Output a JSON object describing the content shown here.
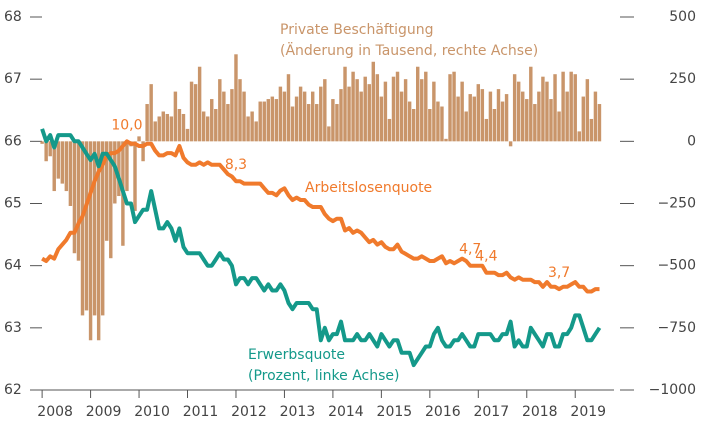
{
  "chart_data": {
    "type": "combo",
    "x": [
      "2008-01",
      "2008-02",
      "2008-03",
      "2008-04",
      "2008-05",
      "2008-06",
      "2008-07",
      "2008-08",
      "2008-09",
      "2008-10",
      "2008-11",
      "2008-12",
      "2009-01",
      "2009-02",
      "2009-03",
      "2009-04",
      "2009-05",
      "2009-06",
      "2009-07",
      "2009-08",
      "2009-09",
      "2009-10",
      "2009-11",
      "2009-12",
      "2010-01",
      "2010-02",
      "2010-03",
      "2010-04",
      "2010-05",
      "2010-06",
      "2010-07",
      "2010-08",
      "2010-09",
      "2010-10",
      "2010-11",
      "2010-12",
      "2011-01",
      "2011-02",
      "2011-03",
      "2011-04",
      "2011-05",
      "2011-06",
      "2011-07",
      "2011-08",
      "2011-09",
      "2011-10",
      "2011-11",
      "2011-12",
      "2012-01",
      "2012-02",
      "2012-03",
      "2012-04",
      "2012-05",
      "2012-06",
      "2012-07",
      "2012-08",
      "2012-09",
      "2012-10",
      "2012-11",
      "2012-12",
      "2013-01",
      "2013-02",
      "2013-03",
      "2013-04",
      "2013-05",
      "2013-06",
      "2013-07",
      "2013-08",
      "2013-09",
      "2013-10",
      "2013-11",
      "2013-12",
      "2014-01",
      "2014-02",
      "2014-03",
      "2014-04",
      "2014-05",
      "2014-06",
      "2014-07",
      "2014-08",
      "2014-09",
      "2014-10",
      "2014-11",
      "2014-12",
      "2015-01",
      "2015-02",
      "2015-03",
      "2015-04",
      "2015-05",
      "2015-06",
      "2015-07",
      "2015-08",
      "2015-09",
      "2015-10",
      "2015-11",
      "2015-12",
      "2016-01",
      "2016-02",
      "2016-03",
      "2016-04",
      "2016-05",
      "2016-06",
      "2016-07",
      "2016-08",
      "2016-09",
      "2016-10",
      "2016-11",
      "2016-12",
      "2017-01",
      "2017-02",
      "2017-03",
      "2017-04",
      "2017-05",
      "2017-06",
      "2017-07",
      "2017-08",
      "2017-09",
      "2017-10",
      "2017-11",
      "2017-12",
      "2018-01",
      "2018-02",
      "2018-03",
      "2018-04",
      "2018-05",
      "2018-06",
      "2018-07",
      "2018-08",
      "2018-09",
      "2018-10",
      "2018-11",
      "2018-12",
      "2019-01",
      "2019-02",
      "2019-03",
      "2019-04",
      "2019-05",
      "2019-06",
      "2019-07"
    ],
    "series": [
      {
        "name": "Private Beschäftigung",
        "note": "(Änderung in Tausend, rechte Achse)",
        "kind": "bar",
        "axis": "y2",
        "color": "#c9956a",
        "values": [
          -10,
          -80,
          -60,
          -200,
          -150,
          -170,
          -200,
          -260,
          -450,
          -480,
          -700,
          -680,
          -800,
          -700,
          -800,
          -700,
          -400,
          -470,
          -250,
          -220,
          -420,
          -200,
          -20,
          -280,
          20,
          -80,
          150,
          230,
          80,
          100,
          120,
          110,
          100,
          200,
          130,
          110,
          50,
          240,
          230,
          300,
          120,
          100,
          170,
          130,
          250,
          200,
          150,
          210,
          350,
          250,
          200,
          100,
          120,
          80,
          160,
          160,
          170,
          180,
          170,
          220,
          200,
          270,
          140,
          180,
          220,
          200,
          150,
          200,
          150,
          220,
          250,
          60,
          170,
          150,
          210,
          300,
          220,
          280,
          250,
          200,
          260,
          230,
          320,
          270,
          180,
          240,
          90,
          260,
          280,
          200,
          250,
          160,
          130,
          300,
          250,
          280,
          130,
          240,
          160,
          140,
          10,
          270,
          280,
          180,
          240,
          120,
          190,
          180,
          230,
          210,
          90,
          200,
          130,
          210,
          160,
          190,
          -20,
          270,
          240,
          200,
          170,
          300,
          150,
          200,
          260,
          240,
          170,
          270,
          120,
          280,
          200,
          280,
          270,
          40,
          180,
          250,
          90,
          200,
          150
        ]
      },
      {
        "name": "Arbeitslosenquote",
        "kind": "line",
        "axis": "y3",
        "color": "#f07a2c",
        "values": [
          5.0,
          4.9,
          5.1,
          5.0,
          5.4,
          5.6,
          5.8,
          6.1,
          6.1,
          6.5,
          6.8,
          7.3,
          7.8,
          8.3,
          8.7,
          9.0,
          9.4,
          9.5,
          9.5,
          9.6,
          9.8,
          10.0,
          9.9,
          9.9,
          9.8,
          9.8,
          9.9,
          9.9,
          9.6,
          9.4,
          9.4,
          9.5,
          9.5,
          9.4,
          9.8,
          9.3,
          9.1,
          9.0,
          9.0,
          9.1,
          9.0,
          9.1,
          9.0,
          9.0,
          9.0,
          8.8,
          8.6,
          8.5,
          8.3,
          8.3,
          8.2,
          8.2,
          8.2,
          8.2,
          8.2,
          8.0,
          7.8,
          7.8,
          7.7,
          7.9,
          8.0,
          7.7,
          7.5,
          7.6,
          7.5,
          7.5,
          7.3,
          7.2,
          7.2,
          7.2,
          6.9,
          6.7,
          6.6,
          6.7,
          6.7,
          6.2,
          6.3,
          6.1,
          6.2,
          6.1,
          5.9,
          5.7,
          5.8,
          5.6,
          5.7,
          5.5,
          5.4,
          5.4,
          5.6,
          5.3,
          5.2,
          5.1,
          5.0,
          5.0,
          5.1,
          5.0,
          4.9,
          4.9,
          5.0,
          5.1,
          4.8,
          4.9,
          4.8,
          4.9,
          5.0,
          4.9,
          4.7,
          4.7,
          4.7,
          4.7,
          4.4,
          4.4,
          4.4,
          4.3,
          4.3,
          4.4,
          4.2,
          4.1,
          4.2,
          4.1,
          4.1,
          4.1,
          4.0,
          4.0,
          3.8,
          4.0,
          3.8,
          3.8,
          3.7,
          3.8,
          3.8,
          3.9,
          4.0,
          3.8,
          3.8,
          3.6,
          3.6,
          3.7,
          3.7
        ],
        "annotations": [
          {
            "x": "2009-10",
            "label": "10,0"
          },
          {
            "x": "2012-01",
            "label": "8,3"
          },
          {
            "x": "2016-11",
            "label": "4,7"
          },
          {
            "x": "2017-03",
            "label": "4,4"
          },
          {
            "x": "2018-09",
            "label": "3,7"
          }
        ]
      },
      {
        "name": "Erwerbsquote",
        "note": "(Prozent, linke Achse)",
        "kind": "line",
        "axis": "y",
        "color": "#14998a",
        "values": [
          66.2,
          66.0,
          66.1,
          65.9,
          66.1,
          66.1,
          66.1,
          66.1,
          66.0,
          66.0,
          65.9,
          65.8,
          65.7,
          65.8,
          65.6,
          65.8,
          65.8,
          65.7,
          65.6,
          65.4,
          65.2,
          65.0,
          65.0,
          64.7,
          64.8,
          64.9,
          64.9,
          65.2,
          64.9,
          64.6,
          64.6,
          64.7,
          64.6,
          64.4,
          64.6,
          64.3,
          64.2,
          64.2,
          64.2,
          64.2,
          64.1,
          64.0,
          64.0,
          64.1,
          64.2,
          64.1,
          64.1,
          64.0,
          63.7,
          63.8,
          63.8,
          63.7,
          63.8,
          63.8,
          63.7,
          63.6,
          63.7,
          63.6,
          63.6,
          63.7,
          63.6,
          63.4,
          63.3,
          63.4,
          63.4,
          63.4,
          63.4,
          63.3,
          63.3,
          62.8,
          63.0,
          62.8,
          62.9,
          62.9,
          63.1,
          62.8,
          62.8,
          62.8,
          62.9,
          62.8,
          62.8,
          62.9,
          62.8,
          62.7,
          62.9,
          62.8,
          62.7,
          62.8,
          62.8,
          62.6,
          62.6,
          62.6,
          62.4,
          62.5,
          62.6,
          62.7,
          62.7,
          62.9,
          63.0,
          62.8,
          62.7,
          62.7,
          62.8,
          62.8,
          62.9,
          62.8,
          62.7,
          62.7,
          62.9,
          62.9,
          62.9,
          62.9,
          62.8,
          62.8,
          62.9,
          62.9,
          63.1,
          62.7,
          62.8,
          62.7,
          62.7,
          63.0,
          62.9,
          62.8,
          62.7,
          62.9,
          62.9,
          62.7,
          62.7,
          62.9,
          62.9,
          63.0,
          63.2,
          63.2,
          63.0,
          62.8,
          62.8,
          62.9,
          63.0
        ]
      }
    ],
    "xlim": [
      2007.75,
      2019.8
    ],
    "xticks": [
      2008,
      2009,
      2010,
      2011,
      2012,
      2013,
      2014,
      2015,
      2016,
      2017,
      2018,
      2019
    ],
    "ylim": [
      62,
      68
    ],
    "yticks": [
      62,
      63,
      64,
      65,
      66,
      67,
      68
    ],
    "y2lim": [
      -1000,
      500
    ],
    "y2ticks": [
      {
        "value": -1000,
        "label": "−1000"
      },
      {
        "value": -750,
        "label": "−750"
      },
      {
        "value": -500,
        "label": "−500"
      },
      {
        "value": -250,
        "label": "−250"
      },
      0,
      250,
      500
    ],
    "y3lim": [
      -0.6,
      15.3
    ]
  }
}
